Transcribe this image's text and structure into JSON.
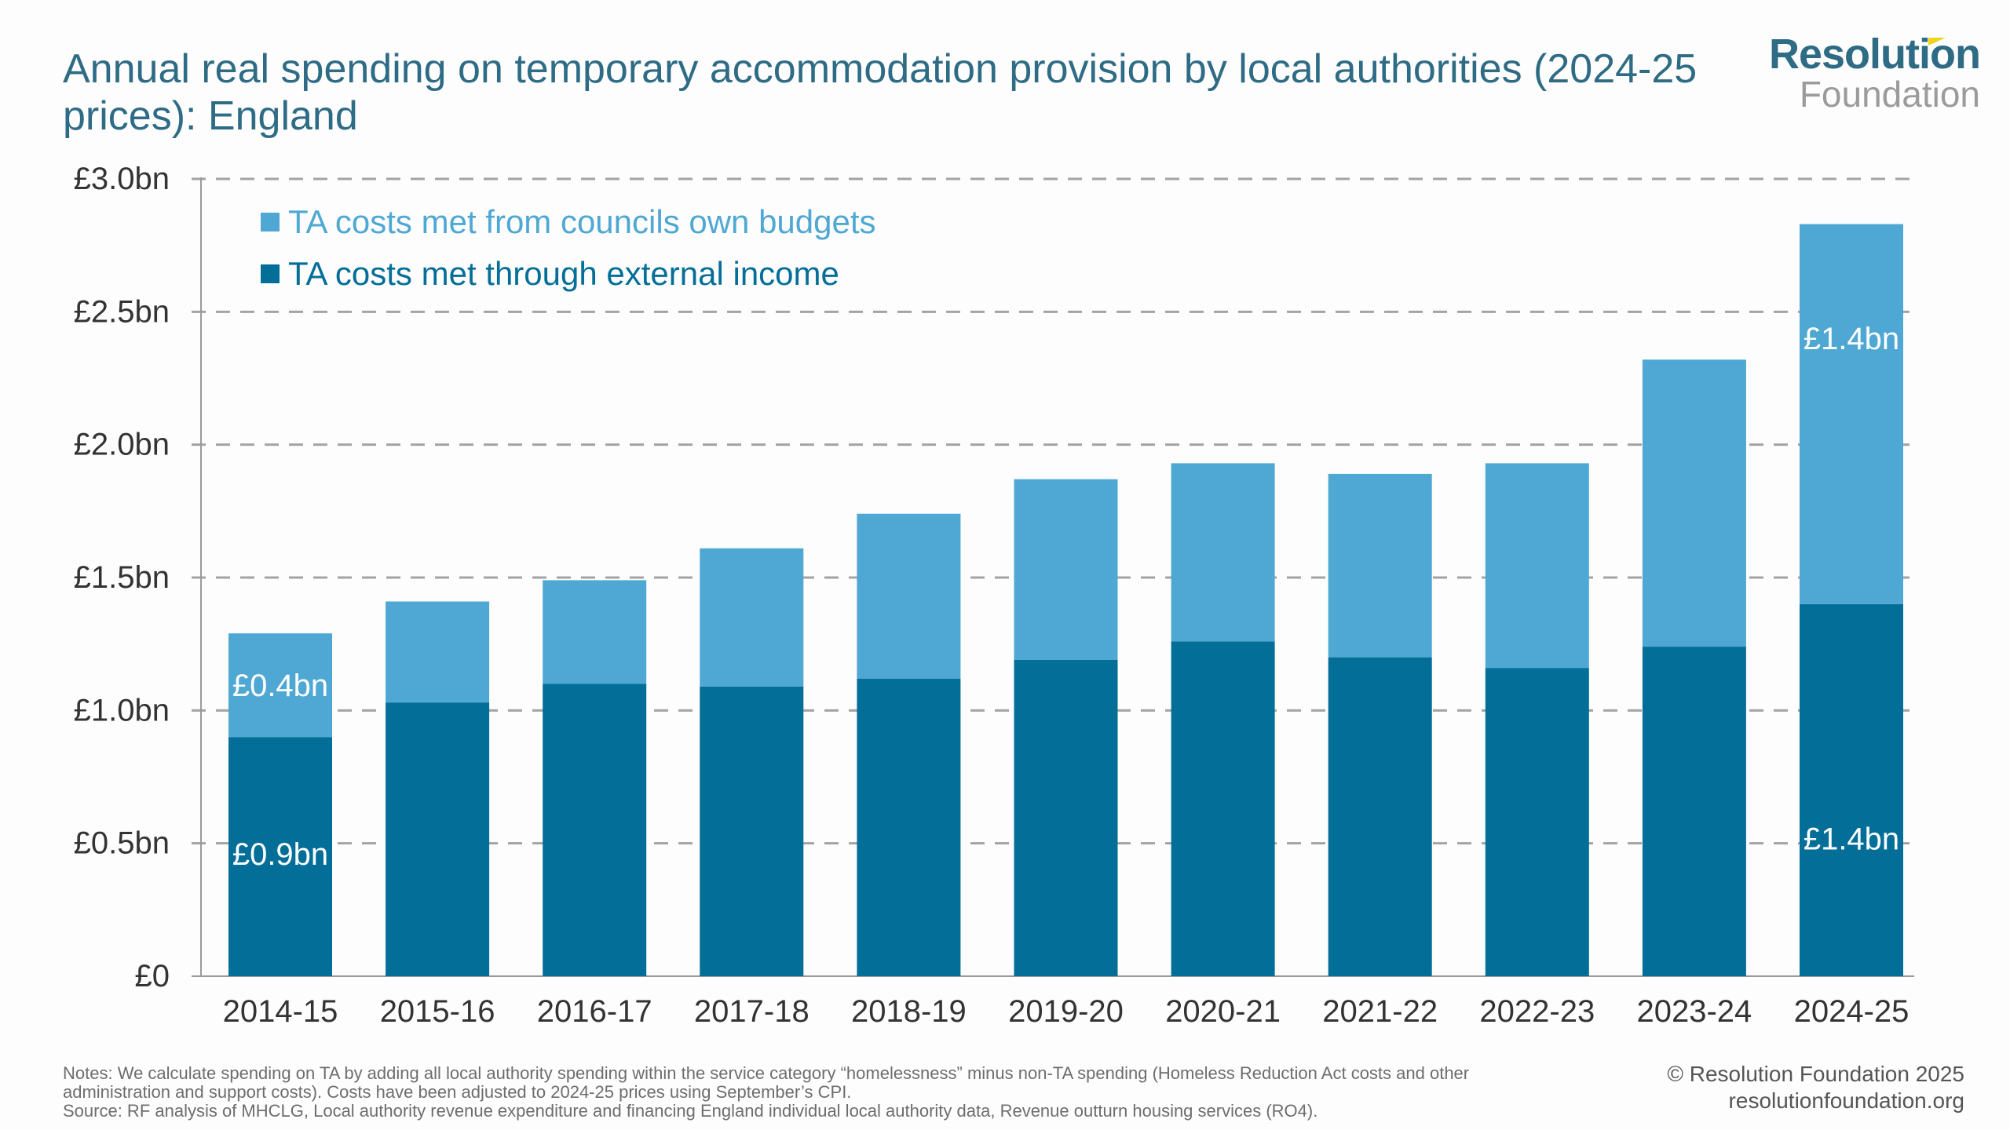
{
  "header": {
    "title": "Annual real spending on temporary accommodation provision by local authorities (2024-25 prices): England",
    "logo_top": "Resolution",
    "logo_bottom": "Foundation"
  },
  "colors": {
    "own_budgets": "#4ea8d3",
    "external_income": "#036e98",
    "title": "#2e6b85",
    "grid": "#a3a3a3",
    "axis_text": "#333333",
    "bar_label": "#ffffff"
  },
  "chart_data": {
    "type": "bar",
    "stacked": true,
    "title": "Annual real spending on temporary accommodation provision by local authorities (2024-25 prices): England",
    "xlabel": "",
    "ylabel": "",
    "ylim": [
      0,
      3.0
    ],
    "yticks": [
      0,
      0.5,
      1.0,
      1.5,
      2.0,
      2.5,
      3.0
    ],
    "ytick_labels": [
      "£0",
      "£0.5bn",
      "£1.0bn",
      "£1.5bn",
      "£2.0bn",
      "£2.5bn",
      "£3.0bn"
    ],
    "grid": true,
    "grid_style": "dashed",
    "legend_position": "top-left",
    "categories": [
      "2014-15",
      "2015-16",
      "2016-17",
      "2017-18",
      "2018-19",
      "2019-20",
      "2020-21",
      "2021-22",
      "2022-23",
      "2023-24",
      "2024-25"
    ],
    "series": [
      {
        "name": "TA costs met through external income",
        "color_key": "external_income",
        "values": [
          0.9,
          1.03,
          1.1,
          1.09,
          1.12,
          1.19,
          1.26,
          1.2,
          1.16,
          1.24,
          1.4
        ]
      },
      {
        "name": "TA costs met from councils own budgets",
        "color_key": "own_budgets",
        "values": [
          0.39,
          0.38,
          0.39,
          0.52,
          0.62,
          0.68,
          0.67,
          0.69,
          0.77,
          1.08,
          1.43
        ]
      }
    ],
    "legend": [
      {
        "name": "TA costs met from councils own budgets",
        "color_key": "own_budgets"
      },
      {
        "name": "TA costs met through external income",
        "color_key": "external_income"
      }
    ],
    "annotations": [
      {
        "category": "2014-15",
        "series": "TA costs met from councils own budgets",
        "text": "£0.4bn"
      },
      {
        "category": "2014-15",
        "series": "TA costs met through external income",
        "text": "£0.9bn"
      },
      {
        "category": "2024-25",
        "series": "TA costs met from councils own budgets",
        "text": "£1.4bn"
      },
      {
        "category": "2024-25",
        "series": "TA costs met through external income",
        "text": "£1.4bn"
      }
    ]
  },
  "footer": {
    "notes_line1": "Notes: We calculate spending on TA by adding all local authority spending within the service category “homelessness” minus non-TA spending (Homeless Reduction Act costs and other",
    "notes_line2": "administration and support costs). Costs have been adjusted to 2024-25 prices using September’s CPI.",
    "source": "Source: RF analysis of MHCLG, Local authority revenue expenditure and financing England individual local authority data, Revenue outturn housing services (RO4).",
    "copyright": "© Resolution Foundation 2025",
    "website": "resolutionfoundation.org"
  }
}
